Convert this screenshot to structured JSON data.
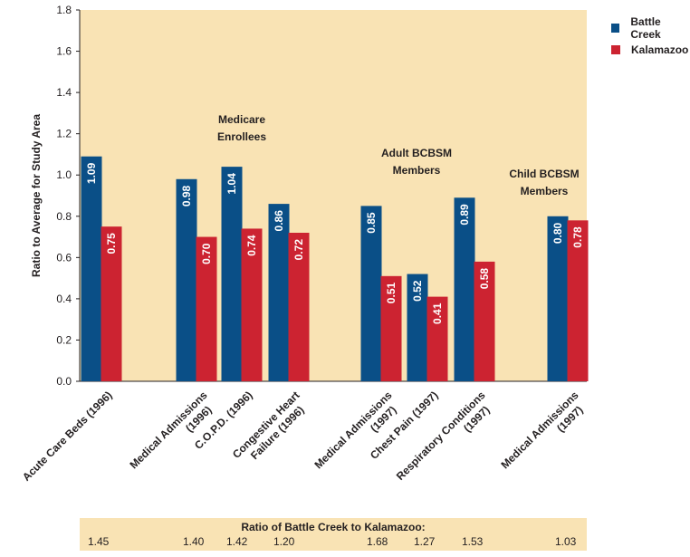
{
  "chart_data": {
    "type": "bar",
    "ylabel": "Ratio to Average for Study Area",
    "ylim": [
      0,
      1.8
    ],
    "yticks": [
      "0.0",
      "0.2",
      "0.4",
      "0.6",
      "0.8",
      "1.0",
      "1.2",
      "1.4",
      "1.6",
      "1.8"
    ],
    "categories": [
      "Acute Care Beds (1996)",
      "Medical Admissions (1996)",
      "C.O.P.D. (1996)",
      "Congestive Heart Failure (1996)",
      "Medical Admissions (1997)",
      "Chest Pain (1997)",
      "Respiratory Conditions (1997)",
      "Medical Admissions (1997)"
    ],
    "category_lines": [
      [
        "Acute Care Beds (1996)"
      ],
      [
        "Medical Admissions",
        "(1996)"
      ],
      [
        "C.O.P.D. (1996)"
      ],
      [
        "Congestive Heart",
        "Failure (1996)"
      ],
      [
        "Medical Admissions",
        "(1997)"
      ],
      [
        "Chest Pain (1997)"
      ],
      [
        "Respiratory Conditions",
        "(1997)"
      ],
      [
        "Medical Admissions",
        "(1997)"
      ]
    ],
    "series": [
      {
        "name": "Battle Creek",
        "color": "#0a4f87",
        "values": [
          1.09,
          0.98,
          1.04,
          0.86,
          0.85,
          0.52,
          0.89,
          0.8
        ],
        "labels": [
          "1.09",
          "0.98",
          "1.04",
          "0.86",
          "0.85",
          "0.52",
          "0.89",
          "0.80"
        ]
      },
      {
        "name": "Kalamazoo",
        "color": "#cc2331",
        "values": [
          0.75,
          0.7,
          0.74,
          0.72,
          0.51,
          0.41,
          0.58,
          0.78
        ],
        "labels": [
          "0.75",
          "0.70",
          "0.74",
          "0.72",
          "0.51",
          "0.41",
          "0.58",
          "0.78"
        ]
      }
    ],
    "group_labels": [
      [
        "Medicare",
        "Enrollees"
      ],
      [
        "Adult BCBSM",
        "Members"
      ],
      [
        "Child BCBSM",
        "Members"
      ]
    ],
    "plot_background": "#f9e3b4",
    "legend_position": "top-right",
    "grid": false,
    "ratio_table": {
      "title": "Ratio of Battle Creek to Kalamazoo:",
      "values": [
        "1.45",
        "1.40",
        "1.42",
        "1.20",
        "1.68",
        "1.27",
        "1.53",
        "1.03"
      ]
    }
  }
}
